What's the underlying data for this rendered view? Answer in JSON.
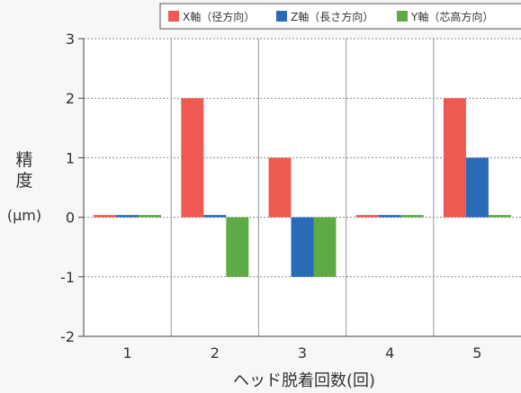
{
  "chart_data": {
    "type": "bar",
    "categories": [
      "1",
      "2",
      "3",
      "4",
      "5"
    ],
    "series": [
      {
        "name": "X軸（径方向）",
        "color": "#ee5a52",
        "values": [
          0.03,
          2,
          1,
          0.03,
          2
        ]
      },
      {
        "name": "Z軸（長さ方向）",
        "color": "#2a6bb8",
        "values": [
          0.03,
          0.03,
          -1,
          0.03,
          1
        ]
      },
      {
        "name": "Y軸（芯高方向）",
        "color": "#5faa45",
        "values": [
          0.03,
          -1,
          -1,
          0.03,
          0.03
        ]
      }
    ],
    "ylabel_lines": [
      "精",
      "度",
      "(μm)"
    ],
    "xlabel": "ヘッド脱着回数(回)",
    "ylim": [
      -2,
      3
    ],
    "yticks": [
      3,
      2,
      1,
      0,
      -1,
      -2
    ],
    "grid": "dashed-horizontal",
    "legend_position": "top-right"
  }
}
